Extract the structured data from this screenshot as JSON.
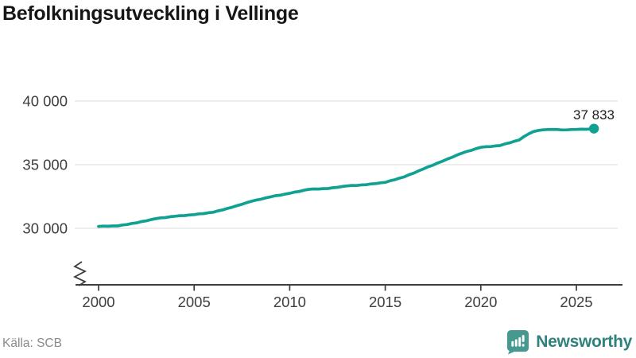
{
  "header": {
    "title": "Befolkningsutveckling i Vellinge"
  },
  "footer": {
    "source": "Källa: SCB",
    "brand": "Newsworthy"
  },
  "chart_data": {
    "type": "line",
    "title": "Befolkningsutveckling i Vellinge",
    "xlabel": "",
    "ylabel": "",
    "grid": "horizontal-only",
    "legend": "none",
    "y_axis_break": true,
    "x_range": [
      2000,
      2026.2
    ],
    "y_range_shown": [
      30000,
      40000
    ],
    "x_ticks": [
      {
        "value": 2000,
        "label": "2000"
      },
      {
        "value": 2005,
        "label": "2005"
      },
      {
        "value": 2010,
        "label": "2010"
      },
      {
        "value": 2015,
        "label": "2015"
      },
      {
        "value": 2020,
        "label": "2020"
      },
      {
        "value": 2025,
        "label": "2025"
      }
    ],
    "y_gridlines": [
      {
        "value": 30000,
        "label": "30 000"
      },
      {
        "value": 35000,
        "label": "35 000"
      },
      {
        "value": 40000,
        "label": "40 000"
      }
    ],
    "end_point": {
      "x": 2025.92,
      "value": 37833,
      "label": "37 833"
    },
    "series": [
      {
        "color": "#11a192",
        "points": [
          [
            2000,
            30150
          ],
          [
            2000.25,
            30175
          ],
          [
            2000.5,
            30160
          ],
          [
            2000.75,
            30190
          ],
          [
            2001,
            30190
          ],
          [
            2001.25,
            30265
          ],
          [
            2001.5,
            30300
          ],
          [
            2001.75,
            30385
          ],
          [
            2002,
            30434
          ],
          [
            2002.25,
            30530
          ],
          [
            2002.5,
            30590
          ],
          [
            2002.75,
            30690
          ],
          [
            2003,
            30764
          ],
          [
            2003.25,
            30825
          ],
          [
            2003.5,
            30845
          ],
          [
            2003.75,
            30915
          ],
          [
            2004,
            30950
          ],
          [
            2004.25,
            30995
          ],
          [
            2004.5,
            31000
          ],
          [
            2004.75,
            31050
          ],
          [
            2005,
            31072
          ],
          [
            2005.25,
            31135
          ],
          [
            2005.5,
            31155
          ],
          [
            2005.75,
            31225
          ],
          [
            2006,
            31261
          ],
          [
            2006.25,
            31375
          ],
          [
            2006.5,
            31450
          ],
          [
            2006.75,
            31570
          ],
          [
            2007,
            31662
          ],
          [
            2007.25,
            31790
          ],
          [
            2007.5,
            31885
          ],
          [
            2007.75,
            32020
          ],
          [
            2008,
            32124
          ],
          [
            2008.25,
            32225
          ],
          [
            2008.5,
            32290
          ],
          [
            2008.75,
            32395
          ],
          [
            2009,
            32475
          ],
          [
            2009.25,
            32560
          ],
          [
            2009.5,
            32600
          ],
          [
            2009.75,
            32690
          ],
          [
            2010,
            32750
          ],
          [
            2010.25,
            32845
          ],
          [
            2010.5,
            32895
          ],
          [
            2010.75,
            32995
          ],
          [
            2011,
            33064
          ],
          [
            2011.25,
            33095
          ],
          [
            2011.5,
            33085
          ],
          [
            2011.75,
            33120
          ],
          [
            2012,
            33126
          ],
          [
            2012.25,
            33190
          ],
          [
            2012.5,
            33220
          ],
          [
            2012.75,
            33290
          ],
          [
            2013,
            33330
          ],
          [
            2013.25,
            33370
          ],
          [
            2013.5,
            33365
          ],
          [
            2013.75,
            33410
          ],
          [
            2014,
            33425
          ],
          [
            2014.25,
            33485
          ],
          [
            2014.5,
            33510
          ],
          [
            2014.75,
            33575
          ],
          [
            2015,
            33612
          ],
          [
            2015.25,
            33735
          ],
          [
            2015.5,
            33820
          ],
          [
            2015.75,
            33945
          ],
          [
            2016,
            34043
          ],
          [
            2016.25,
            34215
          ],
          [
            2016.5,
            34345
          ],
          [
            2016.75,
            34520
          ],
          [
            2017,
            34667
          ],
          [
            2017.25,
            34835
          ],
          [
            2017.5,
            34960
          ],
          [
            2017.75,
            35135
          ],
          [
            2018,
            35275
          ],
          [
            2018.25,
            35445
          ],
          [
            2018.5,
            35580
          ],
          [
            2018.75,
            35755
          ],
          [
            2019,
            35900
          ],
          [
            2019.25,
            36030
          ],
          [
            2019.5,
            36125
          ],
          [
            2019.75,
            36260
          ],
          [
            2020,
            36365
          ],
          [
            2020.25,
            36415
          ],
          [
            2020.5,
            36420
          ],
          [
            2020.75,
            36475
          ],
          [
            2021,
            36499
          ],
          [
            2021.25,
            36625
          ],
          [
            2021.5,
            36710
          ],
          [
            2021.75,
            36840
          ],
          [
            2022,
            36939
          ],
          [
            2022.25,
            37200
          ],
          [
            2022.5,
            37420
          ],
          [
            2022.75,
            37600
          ],
          [
            2023,
            37690
          ],
          [
            2023.25,
            37740
          ],
          [
            2023.5,
            37760
          ],
          [
            2023.75,
            37770
          ],
          [
            2024,
            37760
          ],
          [
            2024.25,
            37730
          ],
          [
            2024.5,
            37740
          ],
          [
            2024.75,
            37760
          ],
          [
            2025,
            37770
          ],
          [
            2025.25,
            37790
          ],
          [
            2025.5,
            37780
          ],
          [
            2025.75,
            37800
          ],
          [
            2025.92,
            37833
          ]
        ]
      }
    ],
    "colors": {
      "line": "#11a192",
      "grid": "#e2e2e2",
      "axis": "#3e3e3e",
      "tick_text": "#3e3e3e",
      "end_label_text": "#1c1c1c",
      "title": "#161616",
      "source": "#8a8a8a",
      "brand_text": "#2f827c",
      "brand_icon": "#47988f"
    }
  }
}
